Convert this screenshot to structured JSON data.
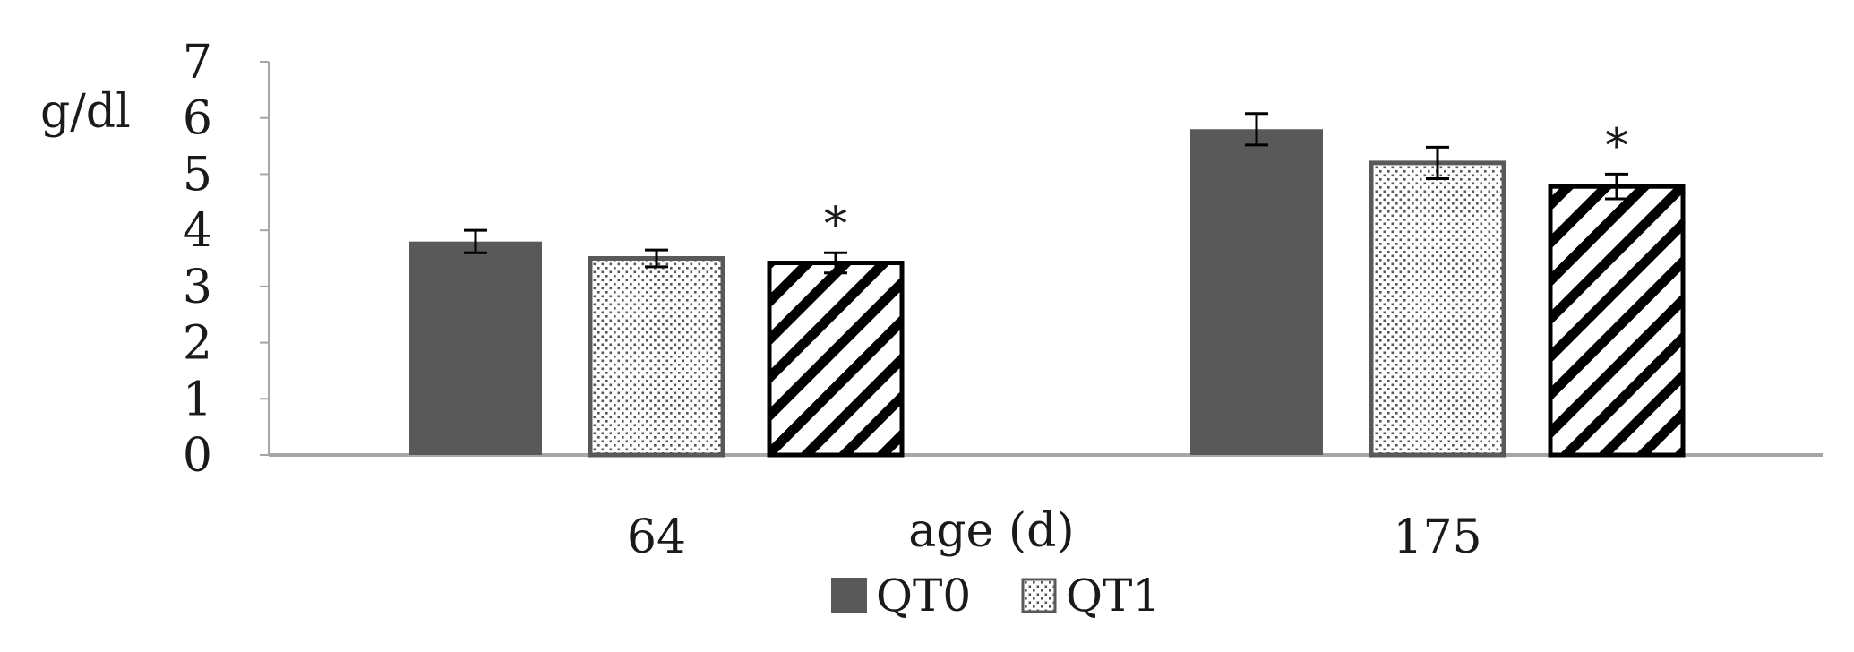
{
  "chart_data": {
    "type": "bar",
    "title": "",
    "ylabel": "g/dl",
    "xlabel": "age (d)",
    "ylim": [
      0,
      7
    ],
    "yticks": [
      0,
      1,
      2,
      3,
      4,
      5,
      6,
      7
    ],
    "categories": [
      "64",
      "175"
    ],
    "series": [
      {
        "name": "QT0",
        "pattern": "solid",
        "values": [
          3.8,
          5.8
        ],
        "errors": [
          0.2,
          0.28
        ],
        "significance": [
          "",
          ""
        ]
      },
      {
        "name": "QT1",
        "pattern": "dots",
        "values": [
          3.5,
          5.2
        ],
        "errors": [
          0.15,
          0.28
        ],
        "significance": [
          "",
          ""
        ]
      },
      {
        "name": "",
        "pattern": "diagonal",
        "values": [
          3.42,
          4.78
        ],
        "errors": [
          0.18,
          0.22
        ],
        "significance": [
          "*",
          "*"
        ]
      }
    ],
    "legend": [
      "QT0",
      "QT1"
    ],
    "legend_position": "bottom-center",
    "colors": {
      "solid": "#595959",
      "axis": "#a6a6a6",
      "bar_outline": "#000000",
      "text": "#1a1a1a"
    }
  }
}
